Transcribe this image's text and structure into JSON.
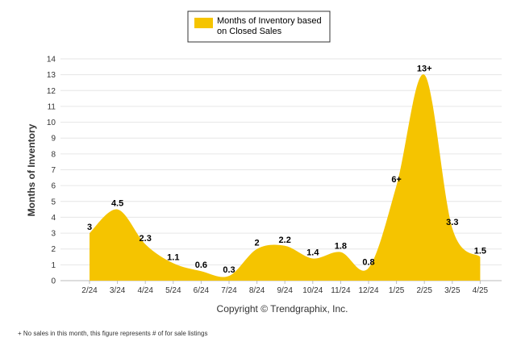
{
  "chart_data": {
    "type": "area",
    "categories": [
      "2/24",
      "3/24",
      "4/24",
      "5/24",
      "6/24",
      "7/24",
      "8/24",
      "9/24",
      "10/24",
      "11/24",
      "12/24",
      "1/25",
      "2/25",
      "3/25",
      "4/25"
    ],
    "series": [
      {
        "name": "Months of Inventory based on Closed Sales",
        "values": [
          3,
          4.5,
          2.3,
          1.1,
          0.6,
          0.3,
          2,
          2.2,
          1.4,
          1.8,
          0.8,
          6,
          13,
          3.3,
          1.5
        ],
        "data_labels": [
          "3",
          "4.5",
          "2.3",
          "1.1",
          "0.6",
          "0.3",
          "2",
          "2.2",
          "1.4",
          "1.8",
          "0.8",
          "6+",
          "13+",
          "3.3",
          "1.5"
        ]
      }
    ],
    "ylabel": "Months of Inventory",
    "xlabel": "",
    "ylim": [
      0,
      14
    ],
    "yticks": [
      "0",
      "1",
      "2",
      "3",
      "4",
      "5",
      "6",
      "7",
      "8",
      "9",
      "10",
      "11",
      "12",
      "13",
      "14"
    ],
    "grid": true,
    "legend_position": "top-center",
    "fill_color": "#F5C400"
  },
  "legend": {
    "line1": "Months of Inventory based",
    "line2": "on Closed Sales"
  },
  "copyright": "Copyright © Trendgraphix, Inc.",
  "footnote": "+ No sales in this month, this figure represents # of for sale listings"
}
